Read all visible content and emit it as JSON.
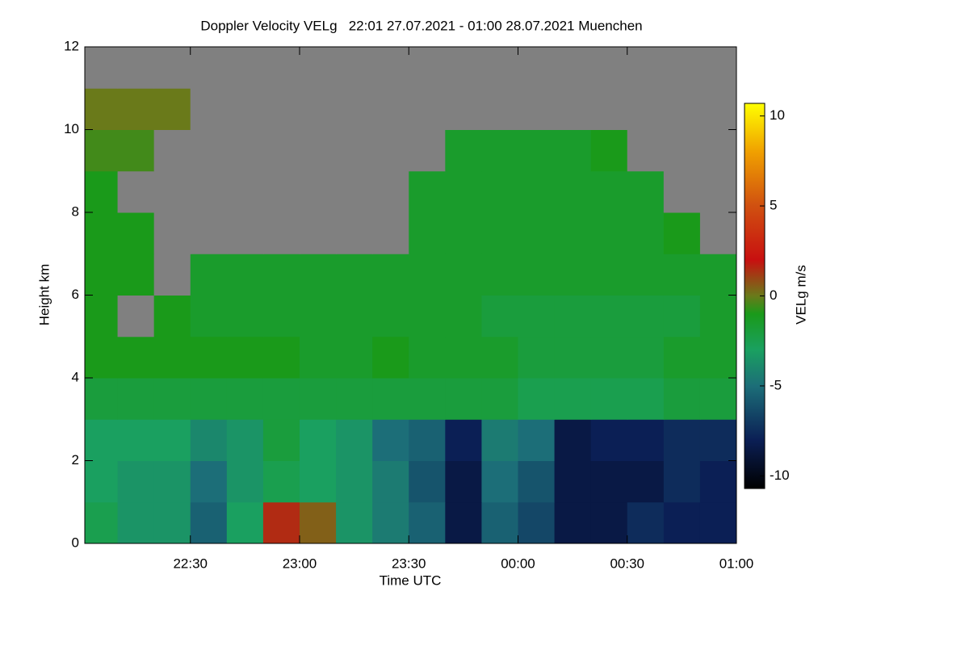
{
  "chart_data": {
    "type": "heatmap",
    "title": "Doppler Velocity VELg   22:01 27.07.2021 - 01:00 28.07.2021 Muenchen",
    "xlabel": "Time UTC",
    "ylabel": "Height km",
    "colorbar_label": "VELg m/s",
    "xlim": [
      1,
      180
    ],
    "ylim": [
      0,
      12
    ],
    "xticks": [
      {
        "value": 30,
        "label": "22:30"
      },
      {
        "value": 60,
        "label": "23:00"
      },
      {
        "value": 90,
        "label": "23:30"
      },
      {
        "value": 120,
        "label": "00:00"
      },
      {
        "value": 150,
        "label": "00:30"
      },
      {
        "value": 180,
        "label": "01:00"
      }
    ],
    "yticks": [
      0,
      2,
      4,
      6,
      8,
      10,
      12
    ],
    "x_edges": [
      1,
      10,
      20,
      30,
      40,
      50,
      60,
      70,
      80,
      90,
      100,
      110,
      120,
      130,
      140,
      150,
      160,
      170,
      180
    ],
    "y_edges": [
      0,
      1,
      2,
      3,
      4,
      5,
      6,
      7,
      8,
      9,
      10,
      11,
      12
    ],
    "z": [
      [
        -2.5,
        -3.5,
        -3.5,
        -5.5,
        -3,
        1.5,
        0.5,
        -3.5,
        -4.5,
        -5.5,
        -8.5,
        -5.5,
        -6.5,
        -8.5,
        -8.5,
        -7.5,
        -8,
        -8
      ],
      [
        -3,
        -3.5,
        -3.5,
        -5,
        -3.5,
        -2.5,
        -3,
        -3.5,
        -4.5,
        -6,
        -8.5,
        -5,
        -6,
        -8.5,
        -8.5,
        -8.5,
        -7.5,
        -8
      ],
      [
        -3,
        -3,
        -3,
        -4,
        -3.5,
        -2,
        -3,
        -3.5,
        -5,
        -5.5,
        -8,
        -4.5,
        -5,
        -8.5,
        -8,
        -8,
        -7.5,
        -7.5
      ],
      [
        -2,
        -2,
        -2,
        -2,
        -2,
        -2,
        -2,
        -2,
        -2,
        -2,
        -2,
        -2,
        -2.5,
        -2.5,
        -2.5,
        -2.5,
        -2,
        -2
      ],
      [
        -1,
        -1,
        -1,
        -1,
        -1,
        -1,
        -1.5,
        -1.5,
        -1,
        -1.5,
        -1.5,
        -1.5,
        -2,
        -2,
        -2,
        -2,
        -1.5,
        -1.5
      ],
      [
        -1,
        null,
        -1,
        -1.5,
        -1.5,
        -1.5,
        -1.5,
        -1.5,
        -1.5,
        -1.5,
        -1.5,
        -2,
        -2,
        -2,
        -2,
        -2,
        -2,
        -1.5
      ],
      [
        -1,
        -1,
        null,
        -1.5,
        -1.5,
        -1.5,
        -1.5,
        -1.5,
        -1.5,
        -1.5,
        -1.5,
        -1.5,
        -1.5,
        -1.5,
        -1.5,
        -1.5,
        -1.5,
        -1.5
      ],
      [
        -1,
        -1,
        null,
        null,
        null,
        null,
        null,
        null,
        null,
        -1.5,
        -1.5,
        -1.5,
        -1.5,
        -1.5,
        -1.5,
        -1.5,
        -1,
        null
      ],
      [
        -1,
        null,
        null,
        null,
        null,
        null,
        null,
        null,
        null,
        -1.5,
        -1.5,
        -1.5,
        -1.5,
        -1.5,
        -1.5,
        -1.5,
        null,
        null
      ],
      [
        -0.5,
        -0.5,
        null,
        null,
        null,
        null,
        null,
        null,
        null,
        null,
        -1.5,
        -1.5,
        -1.5,
        -1.5,
        -1,
        null,
        null,
        null
      ],
      [
        0,
        0,
        0,
        null,
        null,
        null,
        null,
        null,
        null,
        null,
        null,
        null,
        null,
        null,
        null,
        null,
        null,
        null
      ],
      [
        null,
        null,
        null,
        null,
        null,
        null,
        null,
        null,
        null,
        null,
        null,
        null,
        null,
        null,
        null,
        null,
        null,
        null
      ]
    ],
    "clim": [
      -10.7,
      10.7
    ],
    "cticks": [
      -10,
      -5,
      0,
      5,
      10
    ],
    "colorscale": [
      [
        -10.7,
        "#000000"
      ],
      [
        -8,
        "#0b1f55"
      ],
      [
        -5,
        "#1c6e78"
      ],
      [
        -3,
        "#1aa060"
      ],
      [
        -1,
        "#1a9a1a"
      ],
      [
        0,
        "#6a7a1a"
      ],
      [
        2,
        "#c81010"
      ],
      [
        5,
        "#d05010"
      ],
      [
        8,
        "#f0a000"
      ],
      [
        10.7,
        "#ffff00"
      ]
    ],
    "nan_color": "#808080"
  }
}
